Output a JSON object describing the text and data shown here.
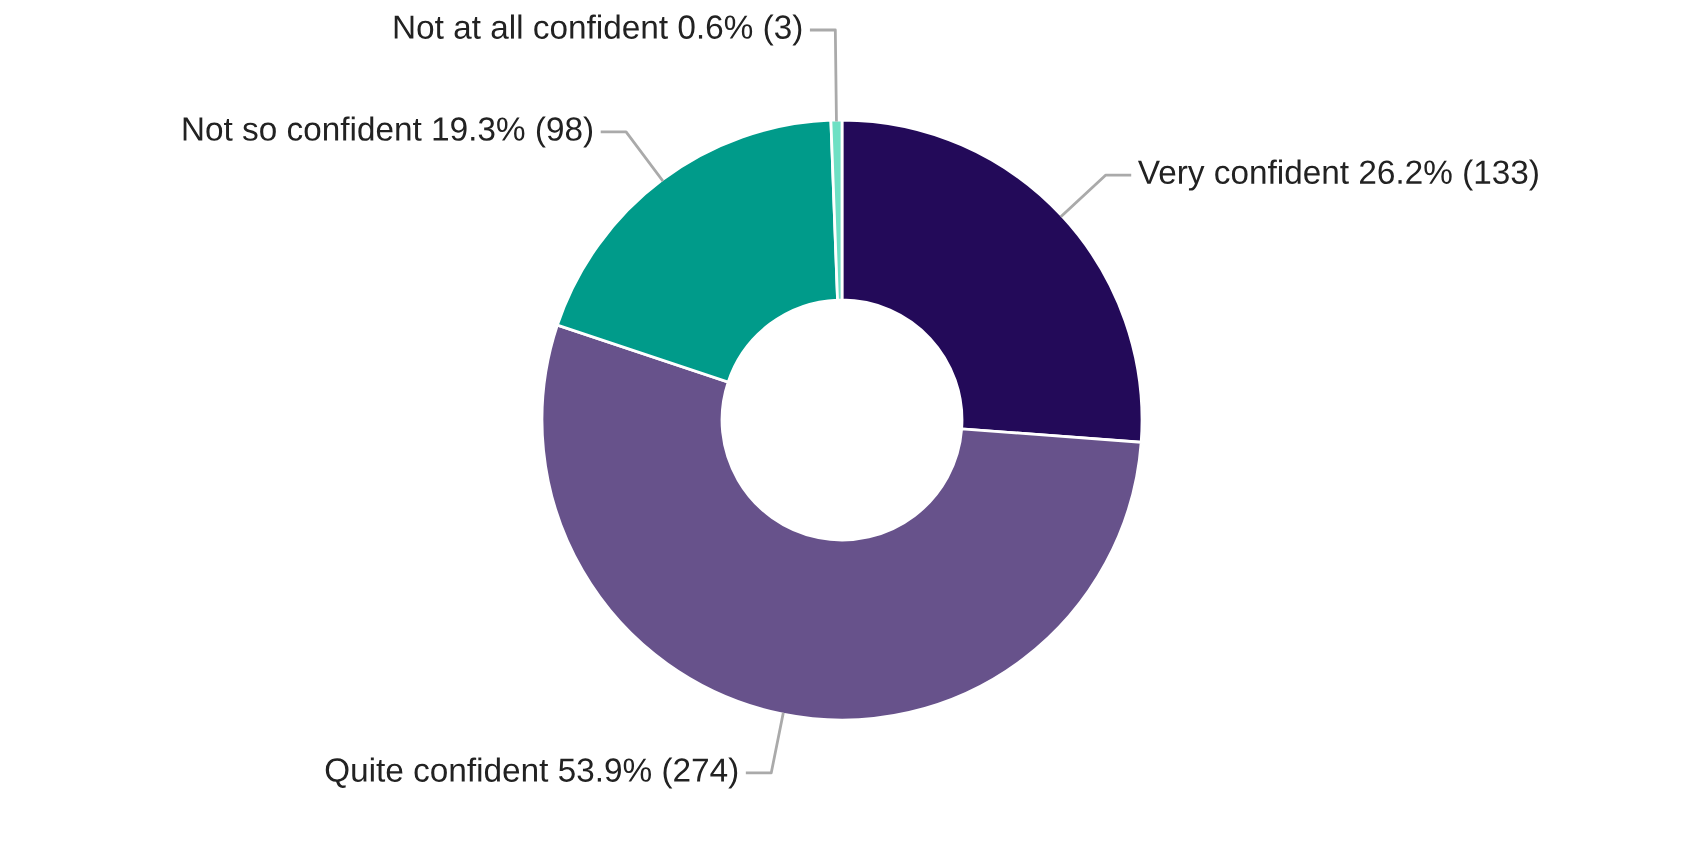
{
  "chart_data": {
    "type": "donut",
    "categories": [
      "Very confident",
      "Quite confident",
      "Not so confident",
      "Not at all confident"
    ],
    "values": [
      133,
      274,
      98,
      3
    ],
    "value_labels": [
      "26.2% (133)",
      "53.9% (274)",
      "19.3% (98)",
      "0.6% (3)"
    ],
    "colors": [
      "#230a59",
      "#67528b",
      "#009b8a",
      "#6ee0c4"
    ],
    "legend": false
  }
}
